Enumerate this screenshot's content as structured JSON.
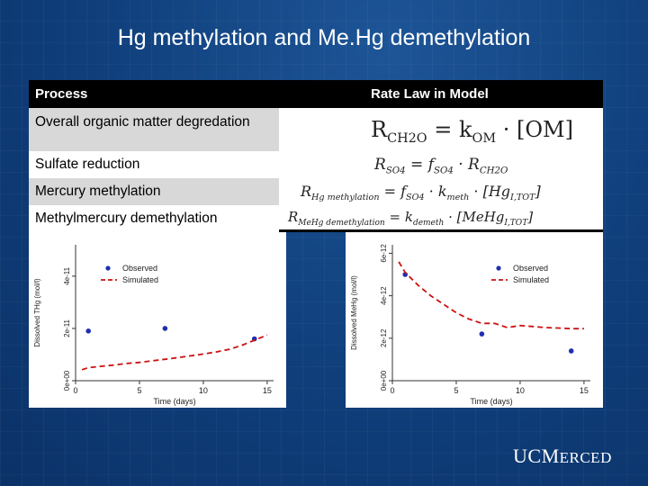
{
  "slide": {
    "title": "Hg methylation and Me.Hg demethylation"
  },
  "table": {
    "headers": [
      "Process",
      "Rate Law in Model"
    ],
    "rows": [
      {
        "process": "Overall organic matter degredation",
        "eq": {
          "lhs": "R",
          "lhs_sub": "CH2O",
          "rhs": "= k",
          "rhs_sub": "OM",
          "tail": " · [OM]"
        }
      },
      {
        "process": "Sulfate reduction",
        "eq": {
          "lhs": "R",
          "lhs_sub": "SO4",
          "rhs": "= f",
          "rhs_sub": "SO4",
          "tail": " · R",
          "tail_sub": "CH2O"
        }
      },
      {
        "process": "Mercury methylation",
        "eq": {
          "lhs": "R",
          "lhs_sub": "Hg methylation",
          "rhs": "= f",
          "rhs_sub": "SO4",
          "mid": " · k",
          "mid_sub": "meth",
          "tail": " · [Hg",
          "tail_sub": "I,TOT",
          "end": "]"
        }
      },
      {
        "process": "Methylmercury demethylation",
        "eq": {
          "lhs": "R",
          "lhs_sub": "MeHg demethylation",
          "rhs": "= k",
          "rhs_sub": "demeth",
          "tail": " · [MeHg",
          "tail_sub": "I,TOT",
          "end": "]"
        }
      }
    ]
  },
  "chart_data": [
    {
      "type": "scatter",
      "xlabel": "Time (days)",
      "ylabel": "Dissolved THg (mol/l)",
      "xlim": [
        0,
        15.5
      ],
      "ylim": [
        0,
        5.2e-11
      ],
      "xticks": [
        0,
        5,
        10,
        15
      ],
      "xtick_labels": [
        "0",
        "5",
        "10",
        "15"
      ],
      "yticks": [
        0,
        2e-11,
        4e-11
      ],
      "ytick_labels": [
        "0e+00",
        "2e-11",
        "4e-11"
      ],
      "legend": [
        "Observed",
        "Simulated"
      ],
      "legend_position": "top-left",
      "series": [
        {
          "name": "Observed",
          "kind": "points",
          "color": "#1f2fb0",
          "x": [
            1,
            7,
            14
          ],
          "y": [
            1.9e-11,
            2e-11,
            1.6e-11
          ]
        },
        {
          "name": "Simulated",
          "kind": "dashed-line",
          "color": "#cc1111",
          "x": [
            0.5,
            1,
            2,
            3,
            4,
            5,
            6,
            7,
            8,
            9,
            10,
            11,
            12,
            13,
            14,
            15
          ],
          "y": [
            4.2e-12,
            5e-12,
            5.5e-12,
            6e-12,
            6.6e-12,
            7e-12,
            7.6e-12,
            8.2e-12,
            8.8e-12,
            9.5e-12,
            1.02e-11,
            1.1e-11,
            1.2e-11,
            1.35e-11,
            1.55e-11,
            1.75e-11
          ]
        }
      ]
    },
    {
      "type": "scatter",
      "xlabel": "Time (days)",
      "ylabel": "Dissolved MeHg (mol/l)",
      "xlim": [
        0,
        15.5
      ],
      "ylim": [
        0,
        6.4e-12
      ],
      "xticks": [
        0,
        5,
        10,
        15
      ],
      "xtick_labels": [
        "0",
        "5",
        "10",
        "15"
      ],
      "yticks": [
        0,
        2e-12,
        4e-12,
        6e-12
      ],
      "ytick_labels": [
        "0e+00",
        "2e-12",
        "4e-12",
        "6e-12"
      ],
      "legend": [
        "Observed",
        "Simulated"
      ],
      "legend_position": "top-right",
      "series": [
        {
          "name": "Observed",
          "kind": "points",
          "color": "#1f2fb0",
          "x": [
            1,
            7,
            14
          ],
          "y": [
            5e-12,
            2.2e-12,
            1.4e-12
          ]
        },
        {
          "name": "Simulated",
          "kind": "dashed-line",
          "color": "#cc1111",
          "x": [
            0.5,
            1,
            2,
            3,
            4,
            5,
            6,
            7,
            8,
            9,
            10,
            11,
            12,
            13,
            14,
            15
          ],
          "y": [
            5.6e-12,
            5.1e-12,
            4.5e-12,
            4e-12,
            3.6e-12,
            3.2e-12,
            2.9e-12,
            2.7e-12,
            2.7e-12,
            2.5e-12,
            2.6e-12,
            2.55e-12,
            2.5e-12,
            2.48e-12,
            2.45e-12,
            2.45e-12
          ]
        }
      ]
    }
  ],
  "logo": {
    "part1": "UC",
    "part2": "M",
    "part3": "ERCED"
  }
}
